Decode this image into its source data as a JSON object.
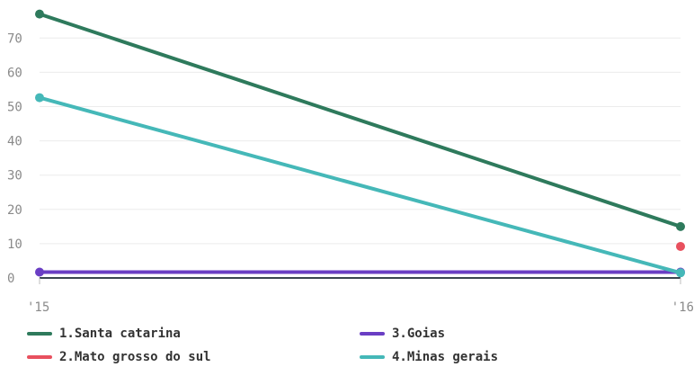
{
  "chart_data": {
    "type": "line",
    "x_tick_labels": [
      "'15",
      "'16"
    ],
    "y_ticks": [
      0,
      10,
      20,
      30,
      40,
      50,
      60,
      70
    ],
    "ylim": [
      0,
      78
    ],
    "grid": true,
    "legend_position": "bottom",
    "series": [
      {
        "name": "1.Santa catarina",
        "color": "#2e7a5c",
        "values": [
          77,
          15
        ]
      },
      {
        "name": "2.Mato grosso do sul",
        "color": "#e8505e",
        "values": [
          null,
          9.2
        ]
      },
      {
        "name": "3.Goias",
        "color": "#6a3ec4",
        "values": [
          1.7,
          1.7
        ]
      },
      {
        "name": "4.Minas gerais",
        "color": "#45b8b8",
        "values": [
          52.6,
          1.5
        ]
      }
    ]
  }
}
